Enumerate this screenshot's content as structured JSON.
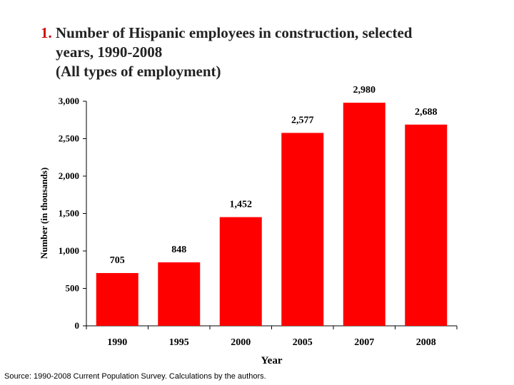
{
  "title": {
    "number": "1.",
    "line1": "Number of Hispanic employees in construction, selected",
    "line2": "years, 1990-2008",
    "line3": "(All types of employment)"
  },
  "source": "Source: 1990-2008 Current Population Survey. Calculations by the authors.",
  "colors": {
    "bar": "#ff0000",
    "accent": "#cc1111"
  },
  "chart_data": {
    "type": "bar",
    "title": "Number of Hispanic employees in construction, selected years, 1990-2008 (All types of employment)",
    "categories": [
      "1990",
      "1995",
      "2000",
      "2005",
      "2007",
      "2008"
    ],
    "values": [
      705,
      848,
      1452,
      2577,
      2980,
      2688
    ],
    "value_labels": [
      "705",
      "848",
      "1,452",
      "2,577",
      "2,980",
      "2,688"
    ],
    "xlabel": "Year",
    "ylabel": "Number (in thousands)",
    "ylim": [
      0,
      3000
    ],
    "yticks": [
      0,
      500,
      1000,
      1500,
      2000,
      2500,
      3000
    ],
    "ytick_labels": [
      "0",
      "500",
      "1,000",
      "1,500",
      "2,000",
      "2,500",
      "3,000"
    ],
    "grid": false,
    "legend": "none"
  }
}
